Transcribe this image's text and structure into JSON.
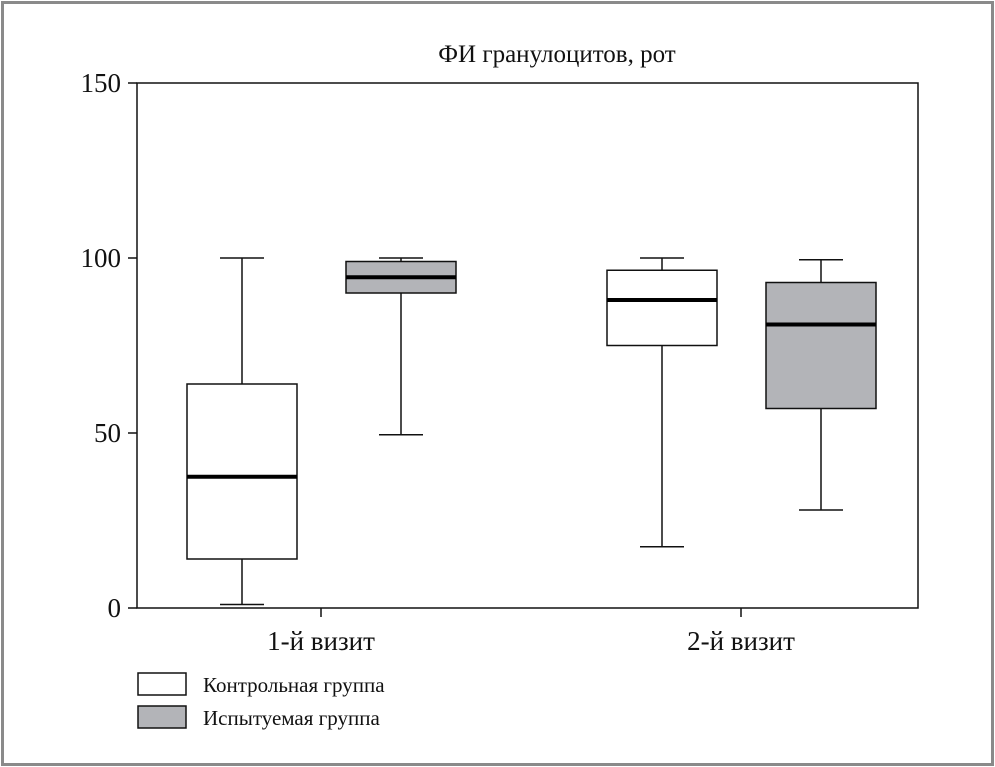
{
  "chart_data": {
    "type": "boxplot",
    "title": "ФИ гранулоцитов, рот",
    "xlabel": "",
    "ylabel": "",
    "ylim": [
      0,
      150
    ],
    "yticks": [
      0,
      50,
      100,
      150
    ],
    "grid": false,
    "categories": [
      "1-й визит",
      "2-й визит"
    ],
    "legend_position": "bottom-left",
    "series": [
      {
        "name": "Контрольная группа",
        "color": "#ffffff",
        "boxes": [
          {
            "min": 1,
            "q1": 14,
            "median": 37.5,
            "q3": 64,
            "max": 100
          },
          {
            "min": 17.5,
            "q1": 75,
            "median": 88,
            "q3": 96.5,
            "max": 100
          }
        ]
      },
      {
        "name": "Испытуемая группа",
        "color": "#b3b4b8",
        "boxes": [
          {
            "min": 49.5,
            "q1": 90,
            "median": 94.5,
            "q3": 99,
            "max": 100
          },
          {
            "min": 28,
            "q1": 57,
            "median": 81,
            "q3": 93,
            "max": 99.5
          }
        ]
      }
    ]
  }
}
